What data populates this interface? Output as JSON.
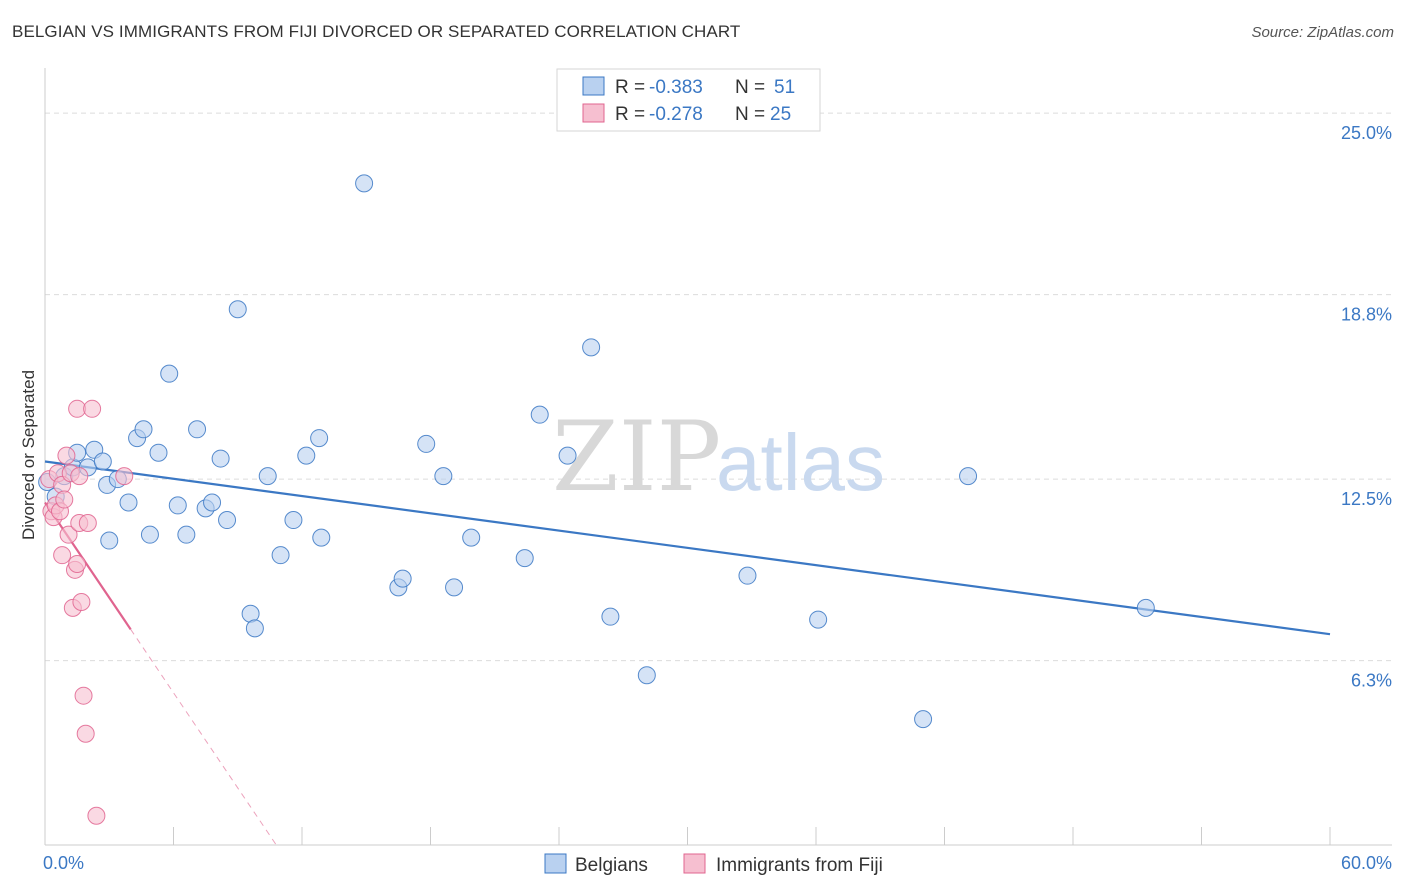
{
  "title": "BELGIAN VS IMMIGRANTS FROM FIJI DIVORCED OR SEPARATED CORRELATION CHART",
  "source": "Source: ZipAtlas.com",
  "watermark": {
    "zip": "ZIP",
    "atlas": "atlas"
  },
  "colors": {
    "blue": "#3b78c4",
    "blue_fill": "#b9d1f0",
    "pink": "#e0648f",
    "pink_fill": "#f6bfd0"
  },
  "legend": {
    "r_label": "R =",
    "n_label": "N =",
    "rows": [
      {
        "r": "-0.383",
        "n": "51"
      },
      {
        "r": "-0.278",
        "n": "25"
      }
    ]
  },
  "bottom_legend": [
    "Belgians",
    "Immigrants from Fiji"
  ],
  "chart_data": {
    "type": "scatter",
    "title": "BELGIAN VS IMMIGRANTS FROM FIJI DIVORCED OR SEPARATED CORRELATION CHART",
    "xlabel": "",
    "ylabel": "Divorced or Separated",
    "xlim": [
      0,
      60
    ],
    "ylim": [
      0,
      26.2
    ],
    "x_tick_labels": [
      "0.0%",
      "60.0%"
    ],
    "y_ticks": [
      6.3,
      12.5,
      18.8,
      25.0
    ],
    "y_tick_labels": [
      "6.3%",
      "12.5%",
      "18.8%",
      "25.0%"
    ],
    "series": [
      {
        "name": "Belgians",
        "r": -0.383,
        "n": 51,
        "trend": {
          "x0": 0,
          "y0": 13.1,
          "x1": 60,
          "y1": 7.2,
          "dash_from": null
        },
        "points": [
          [
            0.1,
            12.4
          ],
          [
            0.5,
            11.9
          ],
          [
            0.9,
            12.6
          ],
          [
            1.3,
            12.9
          ],
          [
            1.5,
            13.4
          ],
          [
            2.0,
            12.9
          ],
          [
            2.3,
            13.5
          ],
          [
            2.7,
            13.1
          ],
          [
            2.9,
            12.3
          ],
          [
            3.0,
            10.4
          ],
          [
            3.4,
            12.5
          ],
          [
            3.9,
            11.7
          ],
          [
            4.3,
            13.9
          ],
          [
            4.6,
            14.2
          ],
          [
            4.9,
            10.6
          ],
          [
            5.3,
            13.4
          ],
          [
            5.8,
            16.1
          ],
          [
            6.2,
            11.6
          ],
          [
            6.6,
            10.6
          ],
          [
            7.1,
            14.2
          ],
          [
            7.5,
            11.5
          ],
          [
            7.8,
            11.7
          ],
          [
            8.2,
            13.2
          ],
          [
            8.5,
            11.1
          ],
          [
            9.0,
            18.3
          ],
          [
            9.6,
            7.9
          ],
          [
            9.8,
            7.4
          ],
          [
            10.4,
            12.6
          ],
          [
            11.0,
            9.9
          ],
          [
            11.6,
            11.1
          ],
          [
            12.2,
            13.3
          ],
          [
            12.8,
            13.9
          ],
          [
            12.9,
            10.5
          ],
          [
            14.9,
            22.6
          ],
          [
            16.5,
            8.8
          ],
          [
            16.7,
            9.1
          ],
          [
            17.8,
            13.7
          ],
          [
            18.6,
            12.6
          ],
          [
            19.1,
            8.8
          ],
          [
            19.9,
            10.5
          ],
          [
            22.4,
            9.8
          ],
          [
            23.1,
            14.7
          ],
          [
            24.4,
            13.3
          ],
          [
            25.5,
            17.0
          ],
          [
            26.4,
            7.8
          ],
          [
            28.1,
            5.8
          ],
          [
            32.8,
            9.2
          ],
          [
            36.1,
            7.7
          ],
          [
            41.0,
            4.3
          ],
          [
            43.1,
            12.6
          ],
          [
            51.4,
            8.1
          ]
        ]
      },
      {
        "name": "Immigrants from Fiji",
        "r": -0.278,
        "n": 25,
        "trend": {
          "x0": 0,
          "y0": 11.7,
          "x1": 10.8,
          "y1": 0,
          "dash_from": 4.0
        },
        "points": [
          [
            0.2,
            12.5
          ],
          [
            0.3,
            11.4
          ],
          [
            0.4,
            11.2
          ],
          [
            0.5,
            11.6
          ],
          [
            0.6,
            12.7
          ],
          [
            0.7,
            11.4
          ],
          [
            0.8,
            12.3
          ],
          [
            0.8,
            9.9
          ],
          [
            0.9,
            11.8
          ],
          [
            1.0,
            13.3
          ],
          [
            1.1,
            10.6
          ],
          [
            1.2,
            12.7
          ],
          [
            1.3,
            8.1
          ],
          [
            1.4,
            9.4
          ],
          [
            1.5,
            9.6
          ],
          [
            1.5,
            14.9
          ],
          [
            1.6,
            12.6
          ],
          [
            1.6,
            11.0
          ],
          [
            1.7,
            8.3
          ],
          [
            1.8,
            5.1
          ],
          [
            1.9,
            3.8
          ],
          [
            2.0,
            11.0
          ],
          [
            2.2,
            14.9
          ],
          [
            2.4,
            1.0
          ],
          [
            3.7,
            12.6
          ]
        ]
      }
    ]
  }
}
